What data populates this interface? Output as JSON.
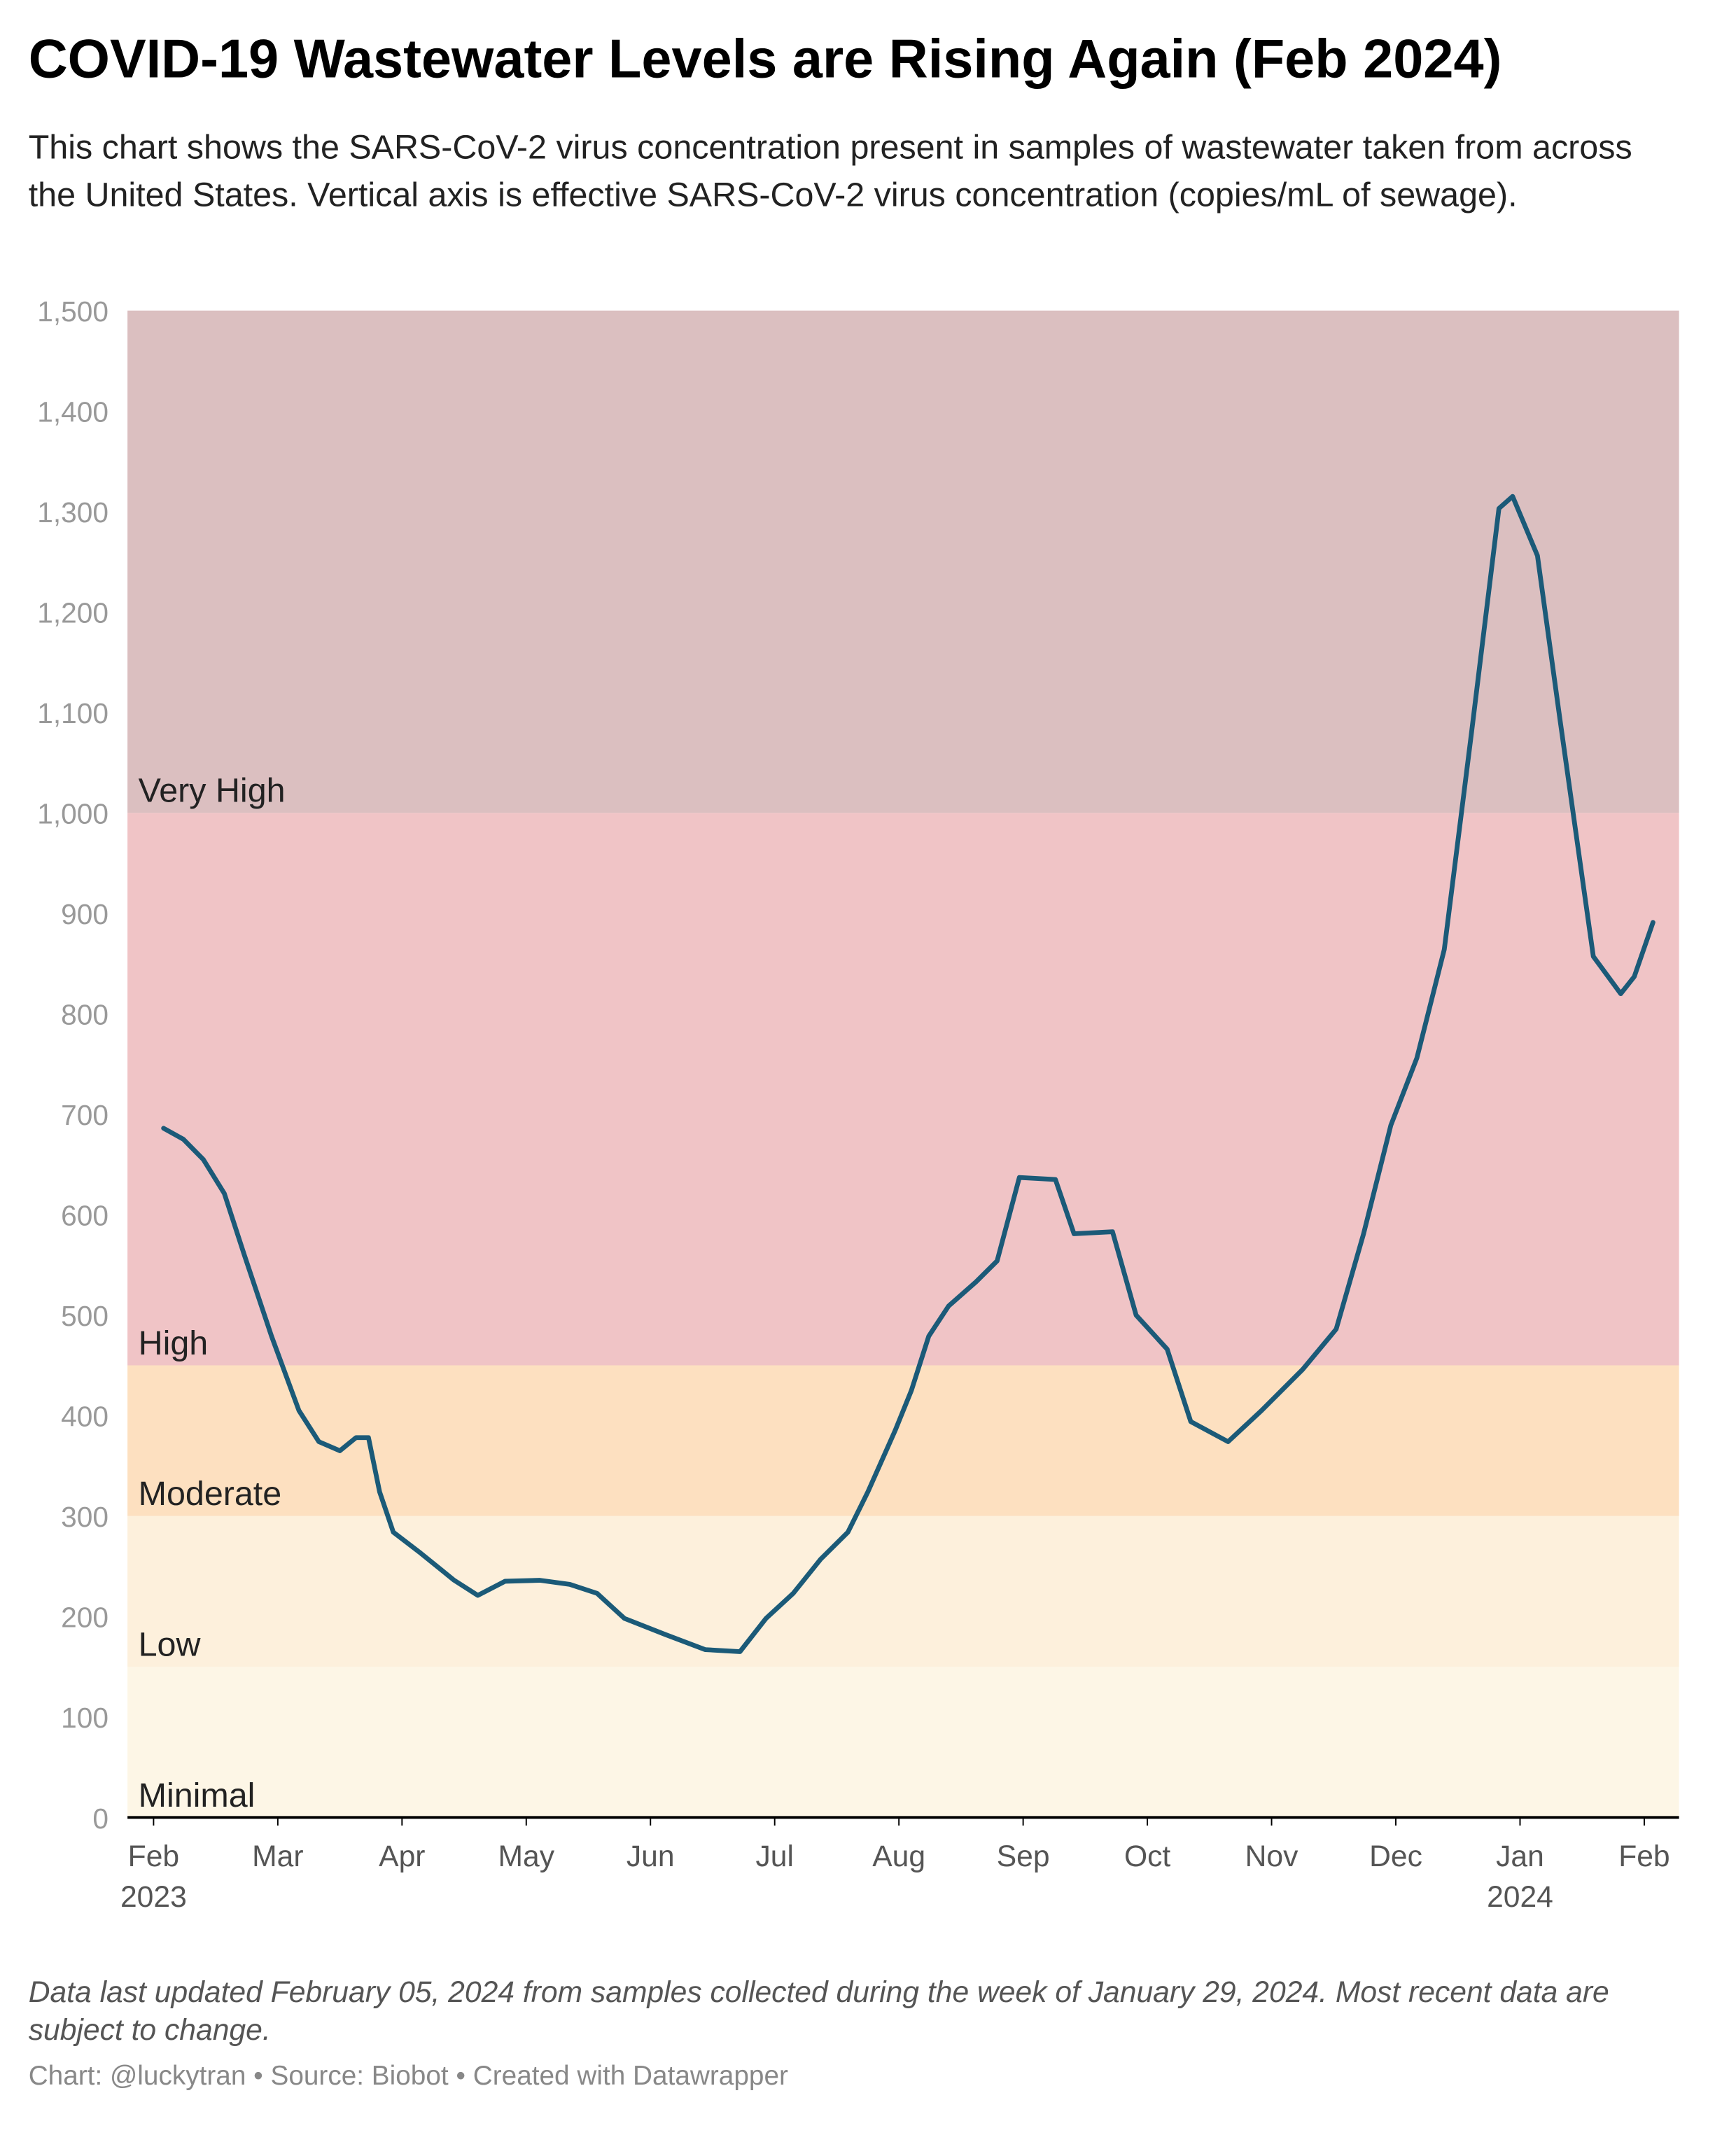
{
  "chart_data": {
    "type": "line",
    "title": "COVID-19 Wastewater Levels are Rising Again (Feb 2024)",
    "subtitle": "This chart shows the SARS-CoV-2 virus concentration present in samples of wastewater taken from across the United States. Vertical axis is effective SARS-CoV-2 virus concentration (copies/mL of sewage).",
    "notes": "Data last updated February 05, 2024 from samples collected during the week of January 29, 2024. Most recent data are subject to change.",
    "credit": "Chart: @luckytran • Source: Biobot • Created with Datawrapper",
    "bands": [
      {
        "name": "Minimal",
        "from": 0,
        "to": 150,
        "color": "#fdf6e6"
      },
      {
        "name": "Low",
        "from": 150,
        "to": 300,
        "color": "#fdf0dc"
      },
      {
        "name": "Moderate",
        "from": 300,
        "to": 450,
        "color": "#fde0c0"
      },
      {
        "name": "High",
        "from": 450,
        "to": 1000,
        "color": "#f0c4c6"
      },
      {
        "name": "Very High",
        "from": 1000,
        "to": 1500,
        "color": "#dbbfc0"
      }
    ],
    "xlim": [
      -0.21,
      12.28
    ],
    "xticks": [
      {
        "value": 0,
        "label": "Feb 2023"
      },
      {
        "value": 1,
        "label": "Mar"
      },
      {
        "value": 2,
        "label": "Apr"
      },
      {
        "value": 3,
        "label": "May"
      },
      {
        "value": 4,
        "label": "Jun"
      },
      {
        "value": 5,
        "label": "Jul"
      },
      {
        "value": 6,
        "label": "Aug"
      },
      {
        "value": 7,
        "label": "Sep"
      },
      {
        "value": 8,
        "label": "Oct"
      },
      {
        "value": 9,
        "label": "Nov"
      },
      {
        "value": 10,
        "label": "Dec"
      },
      {
        "value": 11,
        "label": "Jan 2024"
      },
      {
        "value": 12,
        "label": "Feb"
      }
    ],
    "ylim": [
      0,
      1500
    ],
    "yticks": [
      0,
      100,
      200,
      300,
      400,
      500,
      600,
      700,
      800,
      900,
      {
        "value": 1000,
        "label": "1,000"
      },
      {
        "value": 1100,
        "label": "1,100"
      },
      {
        "value": 1200,
        "label": "1,200"
      },
      {
        "value": 1300,
        "label": "1,300"
      },
      {
        "value": 1400,
        "label": "1,400"
      },
      {
        "value": 1500,
        "label": "1,500"
      }
    ],
    "x": [
      0.08,
      0.24,
      0.4,
      0.57,
      0.73,
      0.95,
      1.17,
      1.33,
      1.5,
      1.63,
      1.73,
      1.82,
      1.93,
      2.15,
      2.42,
      2.61,
      2.83,
      3.11,
      3.35,
      3.57,
      3.79,
      4.12,
      4.44,
      4.72,
      4.93,
      5.15,
      5.37,
      5.59,
      5.75,
      5.97,
      6.1,
      6.24,
      6.4,
      6.62,
      6.79,
      6.97,
      7.26,
      7.41,
      7.72,
      7.91,
      8.16,
      8.35,
      8.65,
      8.92,
      9.25,
      9.52,
      9.74,
      9.96,
      10.17,
      10.39,
      10.61,
      10.83,
      10.94,
      11.14,
      11.32,
      11.59,
      11.81,
      11.92,
      12.07
    ],
    "series": [
      {
        "color": "#1b5a78",
        "values": [
          686,
          675,
          655,
          621,
          560,
          479,
          405,
          374,
          365,
          378,
          378,
          324,
          284,
          263,
          236,
          221,
          235,
          236,
          232,
          223,
          198,
          182,
          167,
          165,
          198,
          223,
          257,
          284,
          324,
          385,
          425,
          479,
          509,
          533,
          554,
          637,
          635,
          581,
          583,
          500,
          466,
          394,
          374,
          405,
          446,
          486,
          581,
          689,
          756,
          864,
          1080,
          1303,
          1315,
          1256,
          1094,
          857,
          820,
          837,
          891
        ]
      }
    ]
  }
}
